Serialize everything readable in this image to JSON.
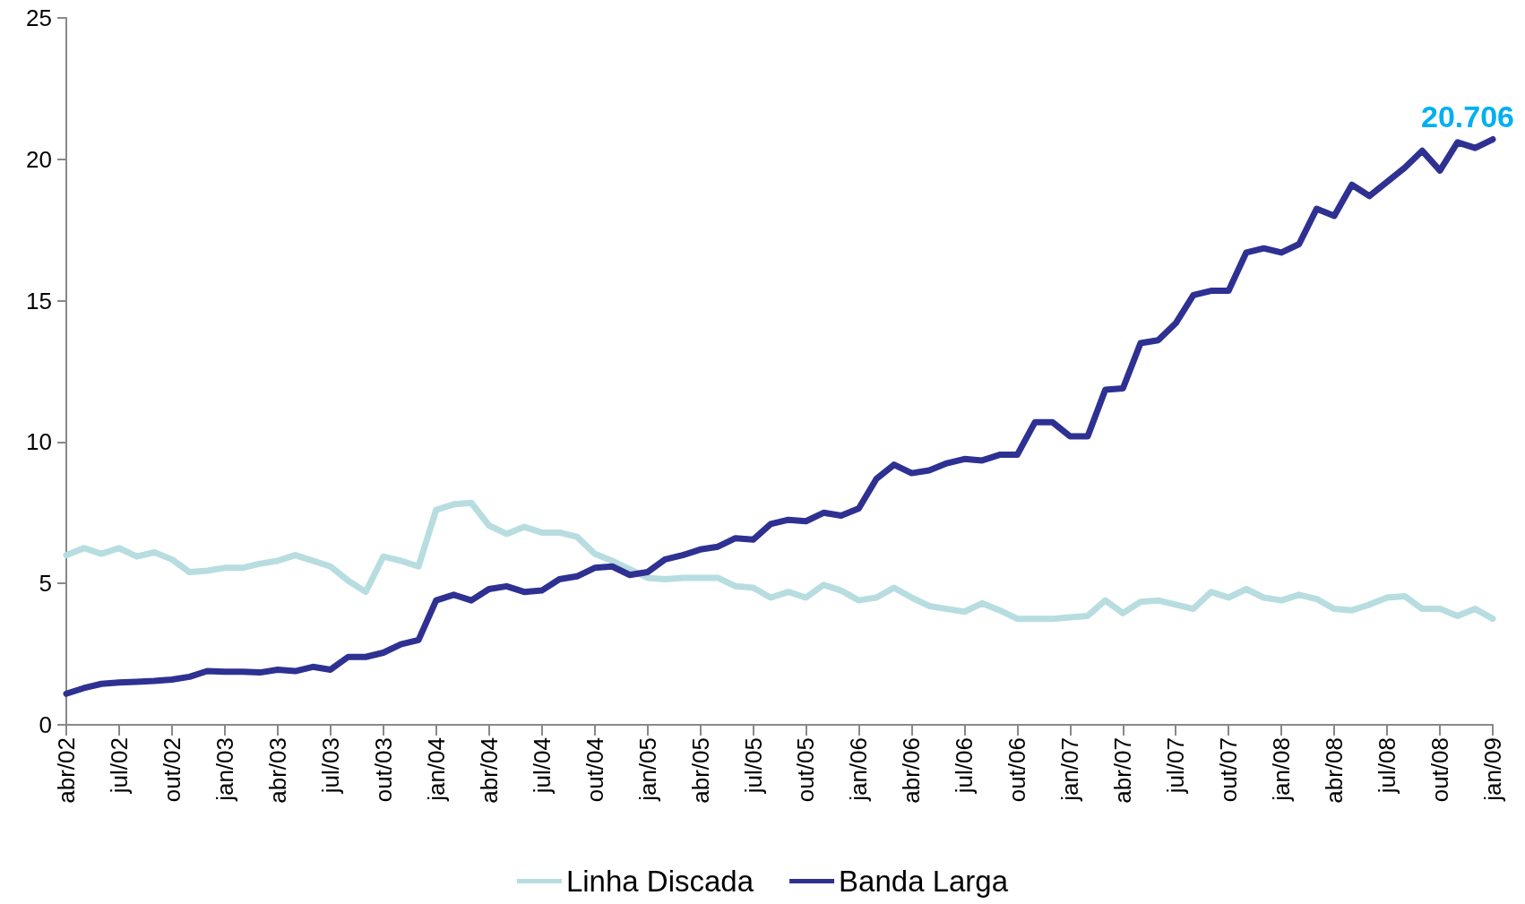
{
  "chart_data": {
    "type": "line",
    "categories": [
      "abr/02",
      null,
      null,
      "jul/02",
      null,
      null,
      "out/02",
      null,
      null,
      "jan/03",
      null,
      null,
      "abr/03",
      null,
      null,
      "jul/03",
      null,
      null,
      "out/03",
      null,
      null,
      "jan/04",
      null,
      null,
      "abr/04",
      null,
      null,
      "jul/04",
      null,
      null,
      "out/04",
      null,
      null,
      "jan/05",
      null,
      null,
      "abr/05",
      null,
      null,
      "jul/05",
      null,
      null,
      "out/05",
      null,
      null,
      "jan/06",
      null,
      null,
      "abr/06",
      null,
      null,
      "jul/06",
      null,
      null,
      "out/06",
      null,
      null,
      "jan/07",
      null,
      null,
      "abr/07",
      null,
      null,
      "jul/07",
      null,
      null,
      "out/07",
      null,
      null,
      "jan/08",
      null,
      null,
      "abr/08",
      null,
      null,
      "jul/08",
      null,
      null,
      "out/08",
      null,
      null,
      "jan/09"
    ],
    "series": [
      {
        "name": "Linha Discada",
        "color": "#b7dde0",
        "values": [
          6.0,
          6.25,
          6.05,
          6.25,
          5.95,
          6.1,
          5.85,
          5.4,
          5.45,
          5.55,
          5.55,
          5.7,
          5.8,
          6.0,
          5.8,
          5.6,
          5.1,
          4.7,
          5.95,
          5.8,
          5.6,
          7.6,
          7.8,
          7.85,
          7.05,
          6.75,
          7.0,
          6.8,
          6.8,
          6.65,
          6.05,
          5.8,
          5.5,
          5.2,
          5.15,
          5.2,
          5.2,
          5.2,
          4.9,
          4.85,
          4.5,
          4.7,
          4.5,
          4.95,
          4.75,
          4.4,
          4.5,
          4.85,
          4.5,
          4.2,
          4.1,
          4.0,
          4.3,
          4.05,
          3.75,
          3.75,
          3.75,
          3.8,
          3.85,
          4.4,
          3.95,
          4.35,
          4.4,
          4.25,
          4.1,
          4.7,
          4.5,
          4.8,
          4.5,
          4.4,
          4.6,
          4.45,
          4.1,
          4.05,
          4.25,
          4.5,
          4.55,
          4.1,
          4.1,
          3.85,
          4.1,
          3.75
        ]
      },
      {
        "name": "Banda Larga",
        "color": "#2e3192",
        "values": [
          1.1,
          1.3,
          1.45,
          1.5,
          1.52,
          1.55,
          1.6,
          1.7,
          1.9,
          1.88,
          1.88,
          1.85,
          1.95,
          1.9,
          2.05,
          1.95,
          2.4,
          2.4,
          2.55,
          2.85,
          3.0,
          4.4,
          4.6,
          4.4,
          4.8,
          4.9,
          4.7,
          4.75,
          5.15,
          5.25,
          5.55,
          5.6,
          5.3,
          5.4,
          5.85,
          6.0,
          6.2,
          6.3,
          6.6,
          6.55,
          7.1,
          7.25,
          7.2,
          7.5,
          7.4,
          7.65,
          8.7,
          9.2,
          8.9,
          9.0,
          9.25,
          9.4,
          9.35,
          9.55,
          9.55,
          10.7,
          10.7,
          10.2,
          10.2,
          11.85,
          11.9,
          13.5,
          13.6,
          14.2,
          15.2,
          15.35,
          15.35,
          16.7,
          16.85,
          16.7,
          17.0,
          18.25,
          18.0,
          19.1,
          18.7,
          19.2,
          19.7,
          20.3,
          19.6,
          20.6,
          20.4,
          20.706
        ],
        "value_labels": [
          null,
          null,
          null,
          null,
          null,
          null,
          null,
          null,
          null,
          null,
          null,
          null,
          null,
          null,
          null,
          null,
          null,
          null,
          null,
          null,
          null,
          null,
          null,
          null,
          null,
          null,
          null,
          null,
          null,
          null,
          null,
          null,
          null,
          null,
          null,
          null,
          null,
          null,
          null,
          null,
          null,
          null,
          null,
          null,
          null,
          null,
          null,
          null,
          null,
          null,
          null,
          null,
          null,
          null,
          null,
          null,
          null,
          null,
          null,
          null,
          null,
          null,
          null,
          null,
          null,
          null,
          null,
          null,
          null,
          null,
          null,
          null,
          null,
          null,
          null,
          null,
          null,
          null,
          null,
          null,
          null,
          "20.706"
        ]
      }
    ],
    "ylim": [
      0,
      25
    ],
    "yticks": [
      0,
      5,
      10,
      15,
      20,
      25
    ],
    "grid": false,
    "legend": "bottom",
    "marker": "none",
    "line_style": "solid"
  }
}
